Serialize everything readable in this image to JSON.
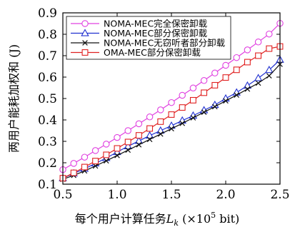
{
  "chart_data": {
    "type": "line",
    "xlabel": "每个用户计算任务L_k (×10^5 bit)",
    "xlabel_parts": {
      "prefix": "每个用户计算任务",
      "var": "L",
      "sub": "k",
      "unit_open": " (×10",
      "unit_exp": "5",
      "unit_close": " bit)"
    },
    "ylabel": "两用户能耗加权和 (J)",
    "xlim": [
      0.5,
      2.5
    ],
    "ylim": [
      0.1,
      0.9
    ],
    "x_ticks": [
      "0.5",
      "1.0",
      "1.5",
      "2.0",
      "2.5"
    ],
    "y_ticks": [
      "0.1",
      "0.2",
      "0.3",
      "0.4",
      "0.5",
      "0.6",
      "0.7",
      "0.8",
      "0.9"
    ],
    "grid": false,
    "legend_position": "top-left",
    "x": [
      0.5,
      0.6,
      0.7,
      0.8,
      0.9,
      1.0,
      1.1,
      1.2,
      1.3,
      1.4,
      1.5,
      1.6,
      1.7,
      1.8,
      1.9,
      2.0,
      2.1,
      2.2,
      2.3,
      2.4,
      2.5
    ],
    "series": [
      {
        "name": "NOMA-MEC完全保密卸载",
        "color": "#e040e0",
        "marker": "circle",
        "values": [
          0.168,
          0.197,
          0.226,
          0.257,
          0.287,
          0.318,
          0.35,
          0.382,
          0.414,
          0.447,
          0.481,
          0.515,
          0.549,
          0.584,
          0.619,
          0.655,
          0.691,
          0.727,
          0.764,
          0.801,
          0.851
        ]
      },
      {
        "name": "NOMA-MEC部分保密卸载",
        "color": "#2030d0",
        "marker": "triangle",
        "values": [
          0.128,
          0.15,
          0.172,
          0.197,
          0.222,
          0.25,
          0.277,
          0.302,
          0.327,
          0.35,
          0.373,
          0.397,
          0.42,
          0.445,
          0.47,
          0.5,
          0.528,
          0.56,
          0.595,
          0.633,
          0.681
        ]
      },
      {
        "name": "NOMA-MEC无窃听者部分卸载",
        "color": "#111111",
        "marker": "x",
        "values": [
          0.123,
          0.141,
          0.162,
          0.185,
          0.209,
          0.234,
          0.259,
          0.284,
          0.309,
          0.334,
          0.359,
          0.384,
          0.41,
          0.436,
          0.462,
          0.489,
          0.516,
          0.544,
          0.572,
          0.606,
          0.66
        ]
      },
      {
        "name": "OMA-MEC部分保密卸载",
        "color": "#e02020",
        "marker": "square",
        "values": [
          0.128,
          0.153,
          0.18,
          0.208,
          0.237,
          0.267,
          0.297,
          0.328,
          0.36,
          0.392,
          0.425,
          0.458,
          0.492,
          0.527,
          0.562,
          0.598,
          0.634,
          0.67,
          0.7,
          0.733,
          0.743
        ]
      }
    ]
  }
}
